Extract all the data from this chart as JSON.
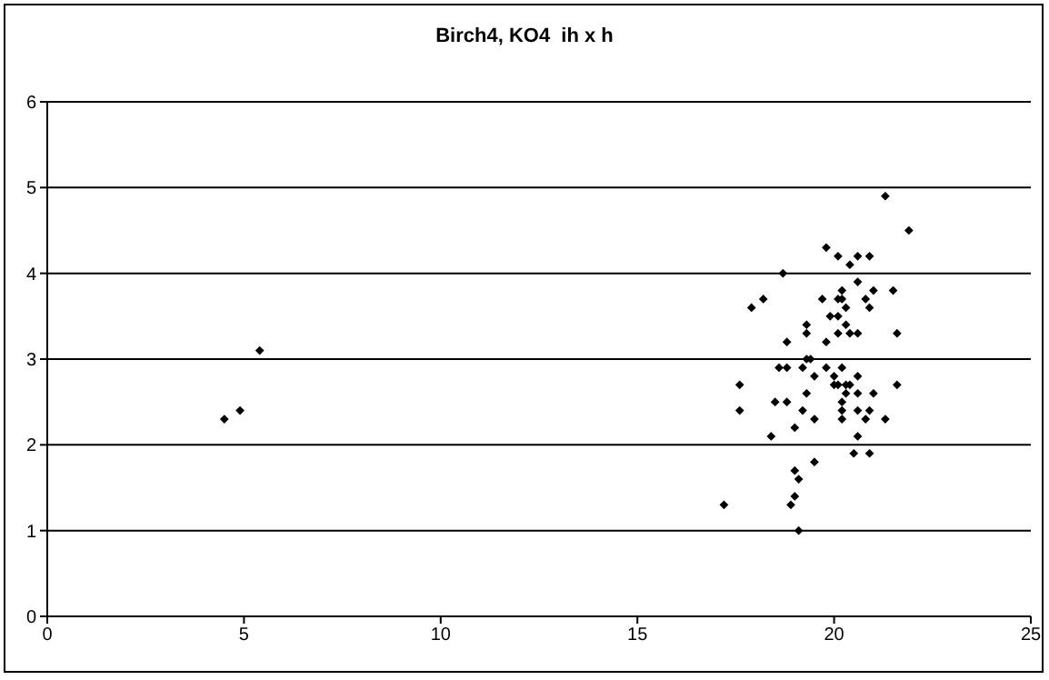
{
  "chart_data": {
    "type": "scatter",
    "title": "Birch4, KO4  ih x h",
    "x": [
      4.5,
      4.9,
      5.4,
      21.3,
      21.9,
      19.8,
      20.1,
      20.6,
      20.9,
      20.4,
      18.7,
      20.6,
      20.2,
      21.0,
      21.5,
      18.2,
      19.7,
      20.1,
      20.2,
      20.8,
      17.9,
      20.3,
      20.9,
      19.9,
      20.1,
      19.3,
      20.3,
      19.3,
      20.1,
      20.4,
      20.6,
      21.6,
      18.8,
      19.8,
      18.6,
      18.8,
      19.2,
      19.3,
      19.4,
      19.8,
      20.2,
      19.5,
      20.0,
      20.6,
      17.6,
      20.0,
      20.1,
      20.3,
      20.4,
      21.6,
      19.3,
      20.3,
      20.6,
      21.0,
      18.5,
      18.8,
      20.2,
      17.6,
      19.2,
      20.2,
      20.6,
      20.9,
      19.5,
      20.2,
      20.8,
      21.3,
      19.0,
      18.4,
      20.6,
      20.5,
      20.9,
      19.5,
      19.0,
      19.1,
      19.0,
      17.2,
      18.9,
      19.1
    ],
    "values": [
      2.3,
      2.4,
      3.1,
      4.9,
      4.5,
      4.3,
      4.2,
      4.2,
      4.2,
      4.1,
      4.0,
      3.9,
      3.8,
      3.8,
      3.8,
      3.7,
      3.7,
      3.7,
      3.7,
      3.7,
      3.6,
      3.6,
      3.6,
      3.5,
      3.5,
      3.4,
      3.4,
      3.3,
      3.3,
      3.3,
      3.3,
      3.3,
      3.2,
      3.2,
      2.9,
      2.9,
      2.9,
      3.0,
      3.0,
      2.9,
      2.9,
      2.8,
      2.8,
      2.8,
      2.7,
      2.7,
      2.7,
      2.7,
      2.7,
      2.7,
      2.6,
      2.6,
      2.6,
      2.6,
      2.5,
      2.5,
      2.5,
      2.4,
      2.4,
      2.4,
      2.4,
      2.4,
      2.3,
      2.3,
      2.3,
      2.3,
      2.2,
      2.1,
      2.1,
      1.9,
      1.9,
      1.8,
      1.7,
      1.6,
      1.4,
      1.3,
      1.3,
      1.0
    ],
    "color": "#000000",
    "marker": "diamond",
    "xlim": [
      0,
      25
    ],
    "xticks": [
      0,
      5,
      10,
      15,
      20,
      25
    ],
    "ylim": [
      0,
      6
    ],
    "yticks": [
      0,
      1,
      2,
      3,
      4,
      5,
      6
    ],
    "grid": "y"
  }
}
